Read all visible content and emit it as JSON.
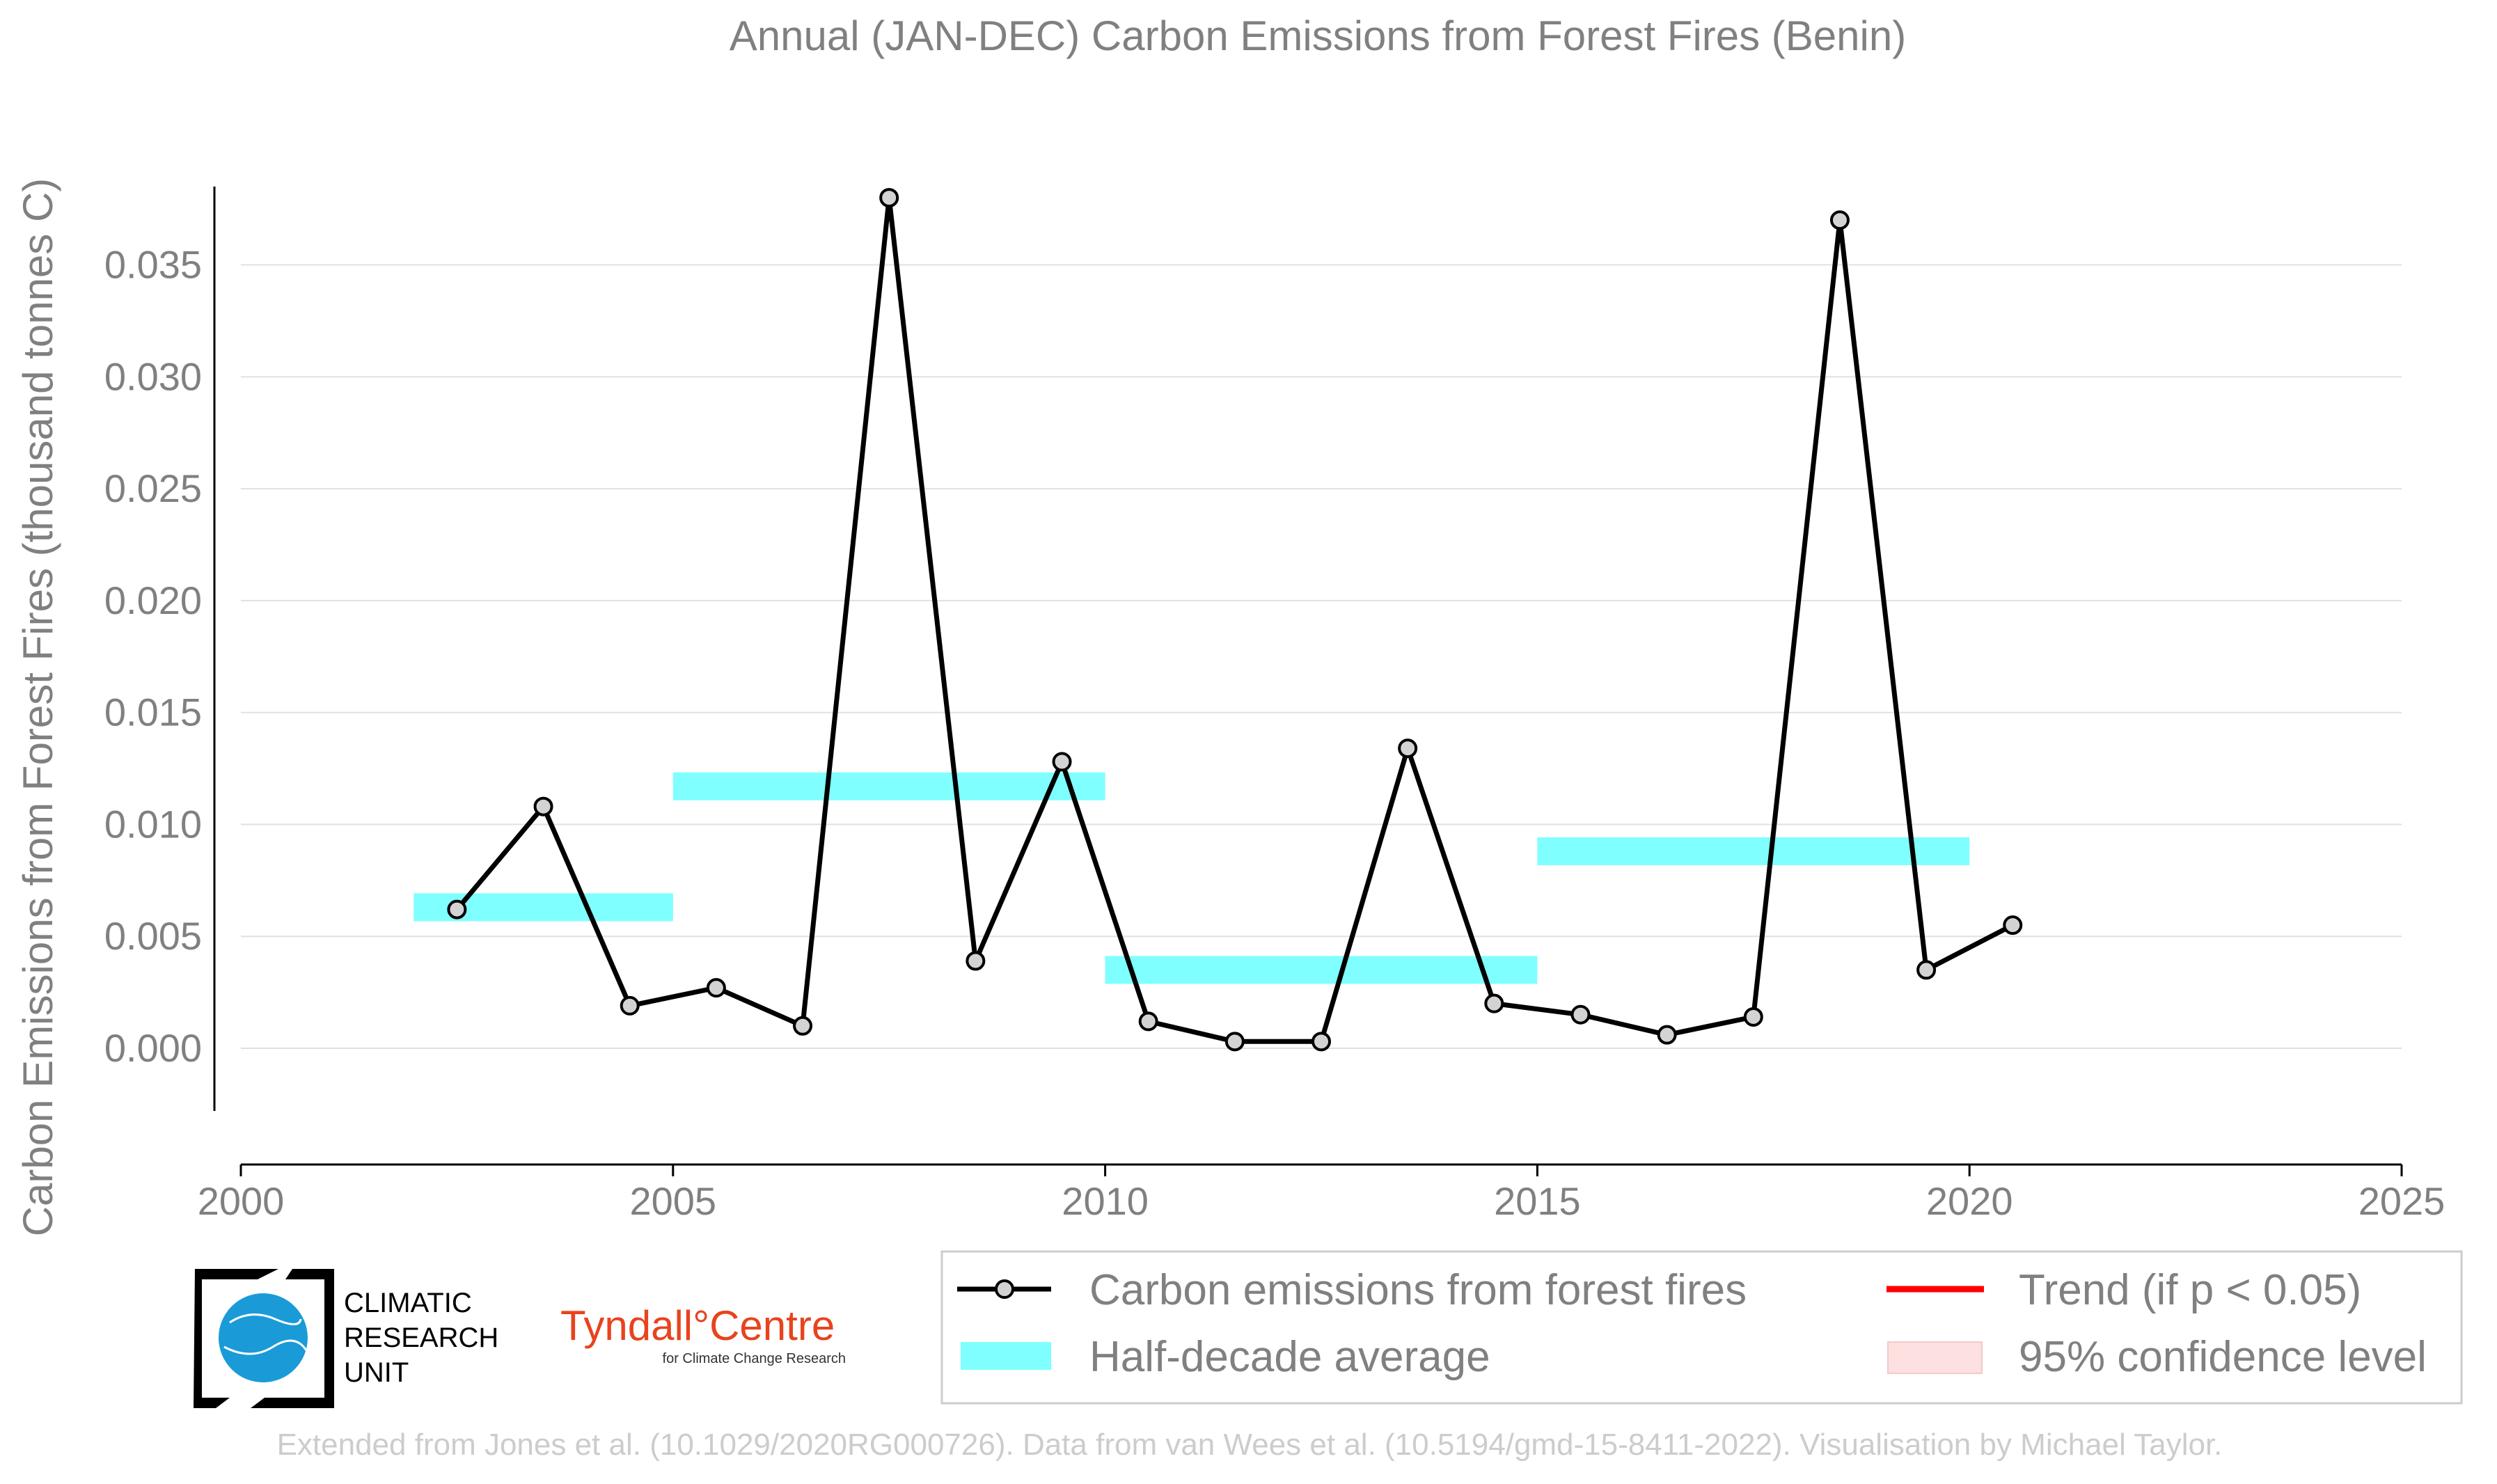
{
  "chart_data": {
    "type": "line",
    "title": "Annual (JAN-DEC) Carbon Emissions from Forest Fires (Benin)",
    "xlabel": "",
    "ylabel": "Carbon Emissions from Forest Fires (thousand tonnes C)",
    "xlim": [
      2000,
      2025
    ],
    "ylim": [
      -0.0028,
      0.0385
    ],
    "x_ticks": [
      "2000",
      "2005",
      "2010",
      "2015",
      "2020",
      "2025"
    ],
    "y_ticks": [
      "0.000",
      "0.005",
      "0.010",
      "0.015",
      "0.020",
      "0.025",
      "0.030",
      "0.035"
    ],
    "grid": "horizontal",
    "series": [
      {
        "name": "Carbon emissions from forest fires",
        "color": "#000000",
        "x": [
          2002.5,
          2003.5,
          2004.5,
          2005.5,
          2006.5,
          2007.5,
          2008.5,
          2009.5,
          2010.5,
          2011.5,
          2012.5,
          2013.5,
          2014.5,
          2015.5,
          2016.5,
          2017.5,
          2018.5,
          2019.5,
          2020.5
        ],
        "y": [
          0.0062,
          0.0108,
          0.0019,
          0.0027,
          0.001,
          0.038,
          0.0039,
          0.0128,
          0.0012,
          0.0003,
          0.0003,
          0.0134,
          0.002,
          0.0015,
          0.0006,
          0.0014,
          0.037,
          0.0035,
          0.0055
        ]
      }
    ],
    "half_decade_average": {
      "name": "Half-decade average",
      "color": "#7fffff",
      "segments": [
        {
          "x0": 2002,
          "x1": 2005,
          "y": 0.0063
        },
        {
          "x0": 2005,
          "x1": 2010,
          "y": 0.0117
        },
        {
          "x0": 2010,
          "x1": 2015,
          "y": 0.0035
        },
        {
          "x0": 2015,
          "x1": 2020,
          "y": 0.0088
        }
      ]
    },
    "legend": {
      "placement": "bottom-right",
      "items": [
        {
          "label": "Carbon emissions from forest fires",
          "kind": "line-marker",
          "color": "#000000"
        },
        {
          "label": "Trend (if p < 0.05)",
          "kind": "line",
          "color": "#ff0000"
        },
        {
          "label": "Half-decade average",
          "kind": "band",
          "color": "#7fffff"
        },
        {
          "label": "95% confidence level",
          "kind": "patch",
          "color": "#fde0e0"
        }
      ]
    }
  },
  "logos": {
    "cru": {
      "line1": "CLIMATIC",
      "line2": "RESEARCH",
      "line3": "UNIT"
    },
    "tyndall": {
      "main": "Tyndall°Centre",
      "sub": "for Climate Change Research"
    }
  },
  "credit": "Extended from Jones et al. (10.1029/2020RG000726). Data from van Wees et al. (10.5194/gmd-15-8411-2022). Visualisation by Michael Taylor."
}
